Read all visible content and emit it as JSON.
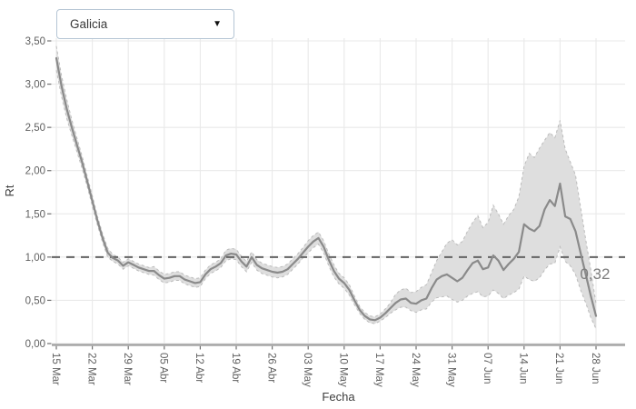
{
  "region_selector": {
    "value": "Galicia",
    "arrow_glyph": "▼"
  },
  "colors": {
    "line": "#8a8a8a",
    "ribbon": "#dedede",
    "ribbon_edge": "#bcbcbc",
    "reference_line": "#636363",
    "grid": "#e9e9e9",
    "axis_line": "#a6a6a6",
    "tick_mark": "#707070",
    "tick_text": "#5f5f5f",
    "title_text": "#3d3d3d",
    "annotation": "#7d7d7d",
    "dropdown_border": "#b5c5d4"
  },
  "chart_data": {
    "type": "line",
    "title": "",
    "xlabel": "Fecha",
    "ylabel": "Rt",
    "legend": "none",
    "grid": true,
    "ylim": [
      0,
      3.5
    ],
    "xlim_days": [
      0,
      105
    ],
    "y_tick_labels": [
      "0,00",
      "0,50",
      "1,00",
      "1,50",
      "2,00",
      "2,50",
      "3,00",
      "3,50"
    ],
    "y_tick_values": [
      0,
      0.5,
      1.0,
      1.5,
      2.0,
      2.5,
      3.0,
      3.5
    ],
    "x_tick_labels": [
      "15 Mar",
      "22 Mar",
      "29 Mar",
      "05 Abr",
      "12 Abr",
      "19 Abr",
      "26 Abr",
      "03 May",
      "10 May",
      "17 May",
      "24 May",
      "31 May",
      "07 Jun",
      "14 Jun",
      "21 Jun",
      "28 Jun"
    ],
    "x_tick_days": [
      0,
      7,
      14,
      21,
      28,
      35,
      42,
      49,
      56,
      63,
      70,
      77,
      84,
      91,
      98,
      105
    ],
    "reference_line": {
      "value": 1.0,
      "style": "dashed"
    },
    "annotation": {
      "text": "0,32",
      "day": 104.8,
      "value": 0.8
    },
    "series": [
      {
        "name": "Rt Galicia",
        "type": "line_with_ci",
        "point_format": [
          "day_from_15_Mar",
          "rt",
          "ci_lower",
          "ci_upper"
        ],
        "points": [
          [
            0,
            3.3,
            3.16,
            3.44
          ],
          [
            1,
            2.98,
            2.86,
            3.1
          ],
          [
            2,
            2.72,
            2.61,
            2.83
          ],
          [
            3,
            2.5,
            2.41,
            2.59
          ],
          [
            4,
            2.3,
            2.22,
            2.38
          ],
          [
            5,
            2.1,
            2.03,
            2.17
          ],
          [
            6,
            1.88,
            1.82,
            1.94
          ],
          [
            7,
            1.65,
            1.59,
            1.71
          ],
          [
            8,
            1.42,
            1.37,
            1.47
          ],
          [
            9,
            1.22,
            1.17,
            1.27
          ],
          [
            10,
            1.05,
            1.0,
            1.1
          ],
          [
            11,
            0.99,
            0.95,
            1.03
          ],
          [
            12,
            0.96,
            0.92,
            1.0
          ],
          [
            13,
            0.9,
            0.86,
            0.94
          ],
          [
            14,
            0.94,
            0.9,
            0.98
          ],
          [
            15,
            0.91,
            0.87,
            0.95
          ],
          [
            16,
            0.88,
            0.84,
            0.92
          ],
          [
            17,
            0.86,
            0.82,
            0.9
          ],
          [
            18,
            0.84,
            0.8,
            0.88
          ],
          [
            19,
            0.84,
            0.79,
            0.89
          ],
          [
            20,
            0.79,
            0.74,
            0.84
          ],
          [
            21,
            0.75,
            0.7,
            0.8
          ],
          [
            22,
            0.76,
            0.71,
            0.81
          ],
          [
            23,
            0.78,
            0.73,
            0.83
          ],
          [
            24,
            0.78,
            0.73,
            0.83
          ],
          [
            25,
            0.74,
            0.69,
            0.79
          ],
          [
            26,
            0.72,
            0.67,
            0.77
          ],
          [
            27,
            0.7,
            0.65,
            0.75
          ],
          [
            28,
            0.71,
            0.66,
            0.76
          ],
          [
            29,
            0.8,
            0.75,
            0.85
          ],
          [
            30,
            0.86,
            0.81,
            0.91
          ],
          [
            31,
            0.89,
            0.84,
            0.94
          ],
          [
            32,
            0.93,
            0.88,
            0.98
          ],
          [
            33,
            1.02,
            0.96,
            1.08
          ],
          [
            34,
            1.04,
            0.98,
            1.1
          ],
          [
            35,
            1.03,
            0.97,
            1.09
          ],
          [
            36,
            0.95,
            0.89,
            1.01
          ],
          [
            37,
            0.89,
            0.83,
            0.95
          ],
          [
            38,
            1.0,
            0.94,
            1.06
          ],
          [
            39,
            0.91,
            0.85,
            0.97
          ],
          [
            40,
            0.87,
            0.81,
            0.93
          ],
          [
            41,
            0.85,
            0.79,
            0.91
          ],
          [
            42,
            0.83,
            0.77,
            0.89
          ],
          [
            43,
            0.82,
            0.76,
            0.88
          ],
          [
            44,
            0.83,
            0.77,
            0.89
          ],
          [
            45,
            0.86,
            0.8,
            0.92
          ],
          [
            46,
            0.92,
            0.86,
            0.98
          ],
          [
            47,
            0.98,
            0.92,
            1.04
          ],
          [
            48,
            1.05,
            0.99,
            1.11
          ],
          [
            49,
            1.12,
            1.05,
            1.19
          ],
          [
            50,
            1.18,
            1.11,
            1.25
          ],
          [
            51,
            1.22,
            1.15,
            1.29
          ],
          [
            52,
            1.12,
            1.05,
            1.19
          ],
          [
            53,
            0.97,
            0.9,
            1.04
          ],
          [
            54,
            0.84,
            0.77,
            0.91
          ],
          [
            55,
            0.75,
            0.69,
            0.81
          ],
          [
            56,
            0.7,
            0.64,
            0.76
          ],
          [
            57,
            0.62,
            0.56,
            0.68
          ],
          [
            58,
            0.5,
            0.45,
            0.55
          ],
          [
            59,
            0.39,
            0.35,
            0.43
          ],
          [
            60,
            0.32,
            0.28,
            0.36
          ],
          [
            61,
            0.28,
            0.24,
            0.32
          ],
          [
            62,
            0.27,
            0.23,
            0.31
          ],
          [
            63,
            0.3,
            0.26,
            0.34
          ],
          [
            64,
            0.35,
            0.3,
            0.4
          ],
          [
            65,
            0.41,
            0.35,
            0.47
          ],
          [
            66,
            0.47,
            0.39,
            0.57
          ],
          [
            67,
            0.51,
            0.42,
            0.62
          ],
          [
            68,
            0.52,
            0.42,
            0.64
          ],
          [
            69,
            0.47,
            0.38,
            0.59
          ],
          [
            70,
            0.46,
            0.36,
            0.6
          ],
          [
            71,
            0.5,
            0.39,
            0.65
          ],
          [
            72,
            0.52,
            0.4,
            0.68
          ],
          [
            73,
            0.64,
            0.48,
            0.82
          ],
          [
            74,
            0.74,
            0.53,
            0.96
          ],
          [
            75,
            0.78,
            0.54,
            1.06
          ],
          [
            76,
            0.8,
            0.55,
            1.16
          ],
          [
            77,
            0.76,
            0.51,
            1.2
          ],
          [
            78,
            0.72,
            0.48,
            1.14
          ],
          [
            79,
            0.76,
            0.5,
            1.18
          ],
          [
            80,
            0.85,
            0.55,
            1.3
          ],
          [
            81,
            0.93,
            0.58,
            1.4
          ],
          [
            82,
            0.96,
            0.6,
            1.48
          ],
          [
            83,
            0.86,
            0.54,
            1.34
          ],
          [
            84,
            0.88,
            0.55,
            1.4
          ],
          [
            85,
            1.02,
            0.62,
            1.6
          ],
          [
            86,
            0.96,
            0.58,
            1.5
          ],
          [
            87,
            0.85,
            0.52,
            1.38
          ],
          [
            88,
            0.92,
            0.56,
            1.48
          ],
          [
            89,
            0.98,
            0.59,
            1.55
          ],
          [
            90,
            1.06,
            0.63,
            1.7
          ],
          [
            91,
            1.38,
            0.78,
            2.05
          ],
          [
            92,
            1.33,
            0.74,
            2.2
          ],
          [
            93,
            1.3,
            0.72,
            2.15
          ],
          [
            94,
            1.36,
            0.76,
            2.26
          ],
          [
            95,
            1.55,
            0.85,
            2.35
          ],
          [
            96,
            1.66,
            0.92,
            2.44
          ],
          [
            97,
            1.59,
            0.93,
            2.38
          ],
          [
            98,
            1.85,
            1.12,
            2.58
          ],
          [
            99,
            1.47,
            0.95,
            2.25
          ],
          [
            100,
            1.44,
            0.9,
            2.1
          ],
          [
            101,
            1.3,
            0.8,
            1.95
          ],
          [
            102,
            1.05,
            0.62,
            1.58
          ],
          [
            103,
            0.8,
            0.47,
            1.2
          ],
          [
            104,
            0.55,
            0.3,
            0.85
          ],
          [
            105,
            0.32,
            0.17,
            0.46
          ]
        ]
      }
    ]
  }
}
